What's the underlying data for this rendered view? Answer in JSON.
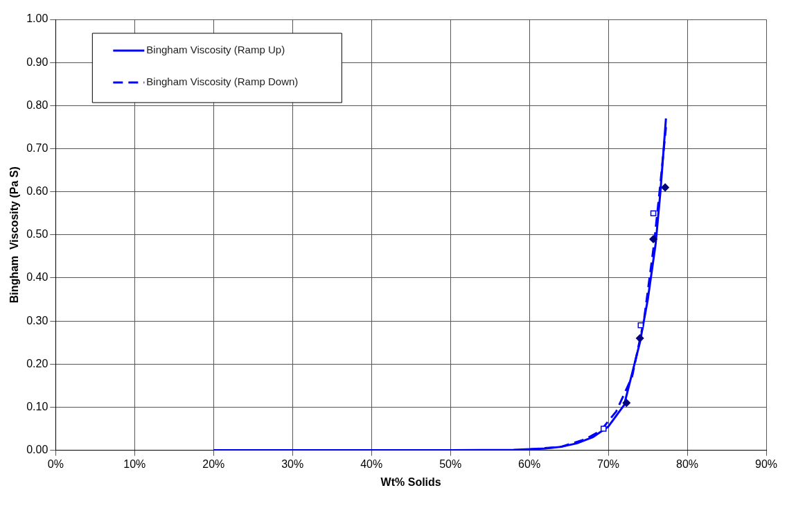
{
  "chart_data": {
    "type": "line",
    "xlabel": "Wt% Solids",
    "ylabel": "Bingham  Viscosity (Pa S)",
    "xlim": [
      0,
      90
    ],
    "xticks": [
      {
        "value": 0,
        "label": "0%"
      },
      {
        "value": 10,
        "label": "10%"
      },
      {
        "value": 20,
        "label": "20%"
      },
      {
        "value": 30,
        "label": "30%"
      },
      {
        "value": 40,
        "label": "40%"
      },
      {
        "value": 50,
        "label": "50%"
      },
      {
        "value": 60,
        "label": "60%"
      },
      {
        "value": 70,
        "label": "70%"
      },
      {
        "value": 80,
        "label": "80%"
      },
      {
        "value": 90,
        "label": "90%"
      }
    ],
    "ylim": [
      0,
      1
    ],
    "yticks": [
      {
        "value": 0,
        "label": "0.00"
      },
      {
        "value": 0.1,
        "label": "0.10"
      },
      {
        "value": 0.2,
        "label": "0.20"
      },
      {
        "value": 0.3,
        "label": "0.30"
      },
      {
        "value": 0.4,
        "label": "0.40"
      },
      {
        "value": 0.5,
        "label": "0.50"
      },
      {
        "value": 0.6,
        "label": "0.60"
      },
      {
        "value": 0.7,
        "label": "0.70"
      },
      {
        "value": 0.8,
        "label": "0.80"
      },
      {
        "value": 0.9,
        "label": "0.90"
      },
      {
        "value": 1,
        "label": "1.00"
      }
    ],
    "grid": true,
    "legend": "top left",
    "marker": "none",
    "line_style": "solid",
    "series": [
      {
        "name": "Bingham Viscosity (Ramp Up)",
        "color": "#0000ff",
        "x": [
          20,
          30,
          40,
          50,
          58,
          62,
          64,
          66,
          68,
          70,
          72,
          74,
          75,
          76,
          76.6,
          77.3
        ],
        "values": [
          0,
          0,
          0,
          0,
          0.001,
          0.004,
          0.008,
          0.016,
          0.03,
          0.055,
          0.105,
          0.25,
          0.35,
          0.48,
          0.6,
          0.77
        ]
      },
      {
        "name": "Bingham Viscosity (Ramp Down)",
        "color": "#0000ff",
        "line_style": "dashed",
        "x": [
          60,
          64,
          67,
          69,
          71,
          73,
          74.5,
          75.8,
          76.6,
          77.3
        ],
        "values": [
          0.002,
          0.008,
          0.025,
          0.045,
          0.09,
          0.17,
          0.3,
          0.48,
          0.62,
          0.75
        ]
      },
      {
        "type": "scatter",
        "marker": "diamond",
        "color": "#000080",
        "x": [
          72.3,
          74,
          75.7,
          77.2
        ],
        "values": [
          0.11,
          0.26,
          0.49,
          0.61
        ]
      },
      {
        "type": "scatter",
        "marker": "square",
        "color": "#0000ff",
        "x": [
          69.4,
          74.1,
          75.7
        ],
        "values": [
          0.05,
          0.29,
          0.55
        ]
      }
    ]
  }
}
